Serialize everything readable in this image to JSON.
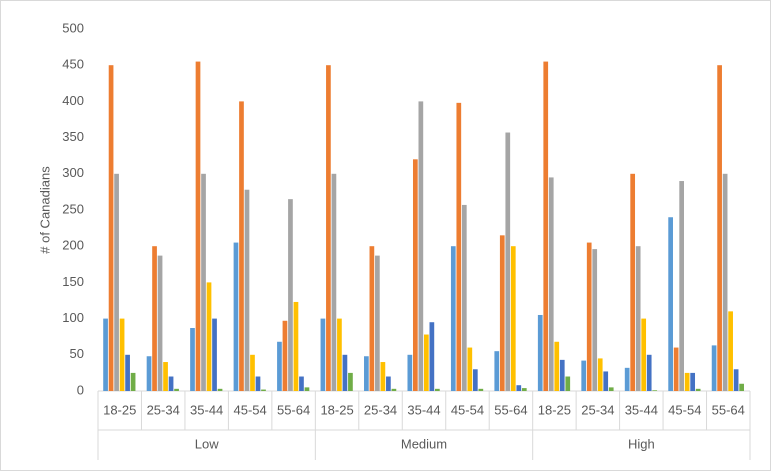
{
  "chart_data": {
    "type": "bar",
    "y_label": "# of Canadians",
    "groups": [
      {
        "name": "Low",
        "categories": [
          "18-25",
          "25-34",
          "35-44",
          "45-54",
          "55-64"
        ]
      },
      {
        "name": "Medium",
        "categories": [
          "18-25",
          "25-34",
          "35-44",
          "45-54",
          "55-64"
        ]
      },
      {
        "name": "High",
        "categories": [
          "18-25",
          "25-34",
          "35-44",
          "45-54",
          "55-64"
        ]
      }
    ],
    "series": [
      {
        "color": "#5b9bd5",
        "values": [
          100,
          48,
          87,
          205,
          68,
          100,
          48,
          50,
          200,
          55,
          105,
          42,
          32,
          240,
          63
        ]
      },
      {
        "color": "#ed7d31",
        "values": [
          450,
          200,
          455,
          400,
          97,
          450,
          200,
          320,
          398,
          215,
          455,
          205,
          300,
          60,
          450
        ]
      },
      {
        "color": "#a5a5a5",
        "values": [
          300,
          187,
          300,
          278,
          265,
          300,
          187,
          400,
          257,
          357,
          295,
          196,
          200,
          290,
          300
        ]
      },
      {
        "color": "#ffc000",
        "values": [
          100,
          40,
          150,
          50,
          123,
          100,
          40,
          78,
          60,
          200,
          68,
          45,
          100,
          25,
          110
        ]
      },
      {
        "color": "#4472c4",
        "values": [
          50,
          20,
          100,
          20,
          20,
          50,
          20,
          95,
          30,
          8,
          43,
          27,
          50,
          25,
          30
        ]
      },
      {
        "color": "#70ad47",
        "values": [
          25,
          3,
          3,
          2,
          5,
          25,
          3,
          3,
          3,
          4,
          20,
          5,
          1,
          3,
          10
        ]
      }
    ],
    "ylim": [
      0,
      500
    ],
    "yticks": [
      0,
      50,
      100,
      150,
      200,
      250,
      300,
      350,
      400,
      450,
      500
    ],
    "grid": false
  }
}
